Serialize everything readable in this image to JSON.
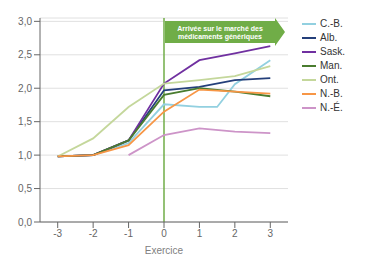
{
  "chart_data": {
    "type": "line",
    "x_label": "Exercice",
    "xlim": [
      -3.5,
      3.5
    ],
    "xticks": [
      -3,
      -2,
      -1,
      0,
      1,
      2,
      3
    ],
    "ylim": [
      0.0,
      3.05
    ],
    "yticks": [
      {
        "value": 0.0,
        "label": "0,0"
      },
      {
        "value": 0.5,
        "label": "0,5"
      },
      {
        "value": 1.0,
        "label": "1,0"
      },
      {
        "value": 1.5,
        "label": "1,5"
      },
      {
        "value": 2.0,
        "label": "2,0"
      },
      {
        "value": 2.5,
        "label": "2,5"
      },
      {
        "value": 3.0,
        "label": "3,0"
      }
    ],
    "grid": "y",
    "legend": "right",
    "reference_line": {
      "x": 0,
      "color": "#70ad47"
    },
    "annotation": {
      "text": "Arrivée sur le marché des\nmédicaments génériques",
      "color": "#70ad47"
    },
    "series": [
      {
        "name": "C.-B.",
        "color": "#92d0e0",
        "x": [
          -3,
          -2,
          -1,
          0,
          1,
          1.5,
          2,
          3
        ],
        "values": [
          0.98,
          1.0,
          1.18,
          1.76,
          1.72,
          1.72,
          2.06,
          2.42
        ]
      },
      {
        "name": "Alb.",
        "color": "#243f7a",
        "x": [
          -3,
          -2,
          -1,
          0,
          1,
          2,
          3
        ],
        "values": [
          0.98,
          1.0,
          1.22,
          1.97,
          2.02,
          2.12,
          2.15
        ]
      },
      {
        "name": "Sask.",
        "color": "#7030a0",
        "x": [
          -3,
          -2,
          -1,
          0,
          1,
          2,
          3
        ],
        "values": [
          0.98,
          1.0,
          1.22,
          2.07,
          2.42,
          2.52,
          2.63
        ]
      },
      {
        "name": "Man.",
        "color": "#4a7c2f",
        "x": [
          -3,
          -2,
          -1,
          0,
          1,
          2,
          3
        ],
        "values": [
          0.98,
          1.0,
          1.22,
          1.9,
          2.0,
          1.95,
          1.88
        ]
      },
      {
        "name": "Ont.",
        "color": "#c4d79b",
        "x": [
          -3,
          -2,
          -1,
          0,
          1,
          2,
          3
        ],
        "values": [
          0.98,
          1.25,
          1.72,
          2.07,
          2.12,
          2.18,
          2.33
        ]
      },
      {
        "name": "N.-B.",
        "color": "#f79646",
        "x": [
          -3,
          -2,
          -1,
          0,
          1,
          2,
          3
        ],
        "values": [
          0.98,
          1.0,
          1.15,
          1.65,
          1.98,
          1.95,
          1.92
        ]
      },
      {
        "name": "N.-É.",
        "color": "#cd94c8",
        "x": [
          -3,
          -2,
          -1,
          0,
          1,
          2,
          3
        ],
        "values": [
          null,
          null,
          1.0,
          1.3,
          1.4,
          1.35,
          1.33
        ]
      }
    ]
  }
}
